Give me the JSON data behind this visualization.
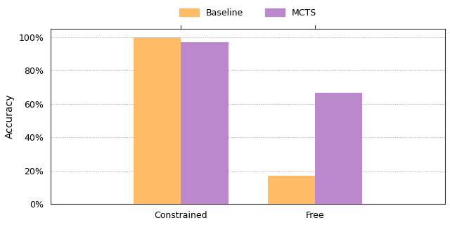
{
  "categories": [
    "Constrained",
    "Free"
  ],
  "baseline_values": [
    1.0,
    0.172
  ],
  "mcts_values": [
    0.972,
    0.667
  ],
  "baseline_color": "#FFBB66",
  "mcts_color": "#BB88CC",
  "ylabel": "Accuracy",
  "ylim": [
    0,
    1.05
  ],
  "yticks": [
    0.0,
    0.2,
    0.4,
    0.6,
    0.8,
    1.0
  ],
  "ytick_labels": [
    "0%",
    "20%",
    "40%",
    "60%",
    "80%",
    "100%"
  ],
  "legend_labels": [
    "Baseline",
    "MCTS"
  ],
  "bar_width": 0.12,
  "centers": [
    0.33,
    0.67
  ],
  "xlim": [
    0.0,
    1.0
  ],
  "background_color": "#ffffff",
  "grid_color": "#aaaaaa",
  "axis_fontsize": 10,
  "tick_fontsize": 9,
  "legend_fontsize": 9
}
